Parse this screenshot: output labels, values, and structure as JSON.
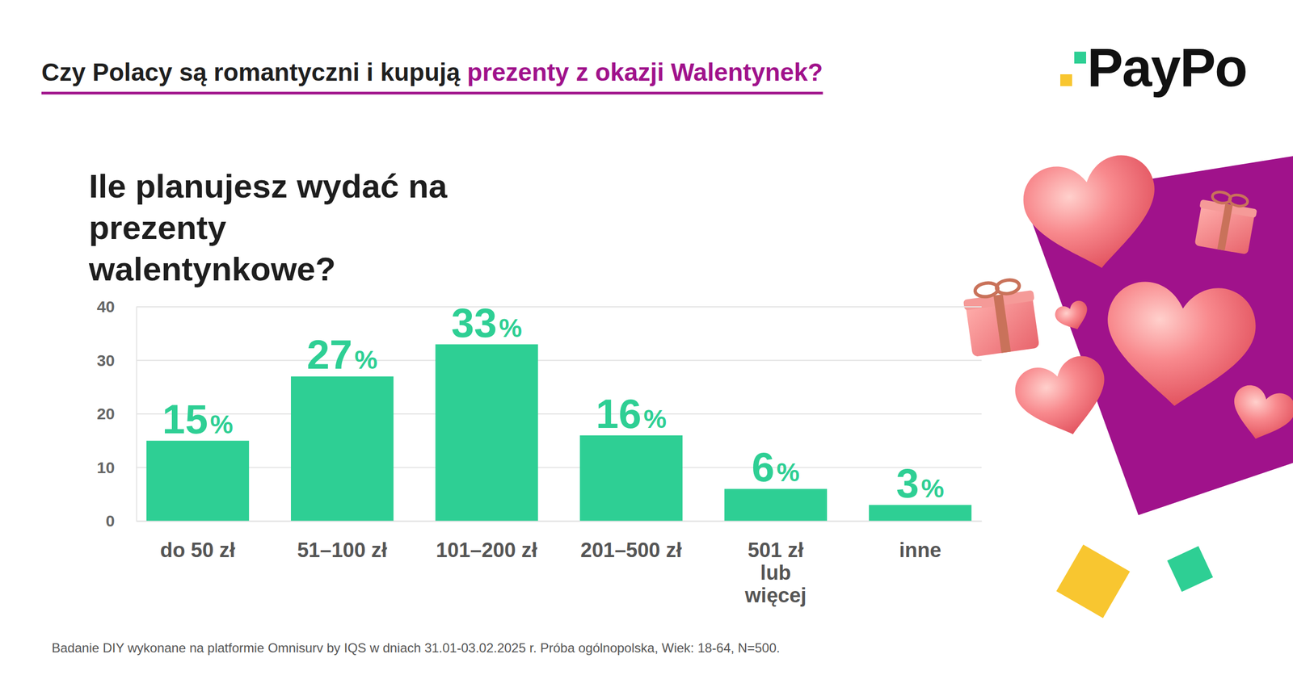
{
  "header": {
    "title": "Czy Polacy są romantyczni i kupują",
    "highlight": "prezenty z okazji Walentynek?",
    "logo": "PayPo"
  },
  "chart_data": {
    "type": "bar",
    "title": "Ile planujesz wydać na prezenty walentynkowe?",
    "categories": [
      "do 50 zł",
      "51–100 zł",
      "101–200 zł",
      "201–500 zł",
      "501 zł lub więcej",
      "inne"
    ],
    "values": [
      15,
      27,
      33,
      16,
      6,
      3
    ],
    "value_labels": [
      "15%",
      "27%",
      "33%",
      "16%",
      "6%",
      "3%"
    ],
    "color": "#2ecf94",
    "ylim": [
      0,
      40
    ],
    "yticks": [
      0,
      10,
      20,
      30,
      40
    ],
    "grid": true,
    "data_labels": true
  },
  "footnote": "Badanie DIY wykonane na platformie Omnisurv by IQS w dniach 31.01-03.02.2025 r. Próba ogólnopolska, Wiek: 18-64, N=500."
}
